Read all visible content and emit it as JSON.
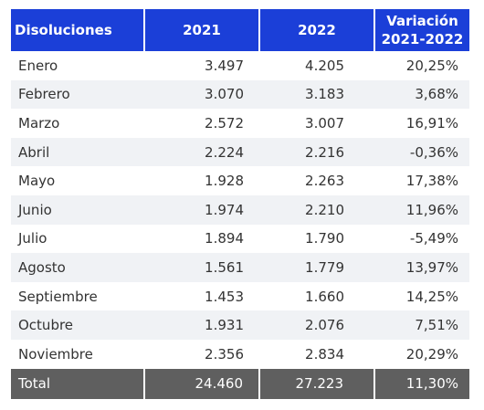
{
  "header": {
    "col_label": "Disoluciones",
    "col_2021": "2021",
    "col_2022": "2022",
    "col_var_line1": "Variación",
    "col_var_line2": "2021-2022"
  },
  "rows": [
    {
      "label": "Enero",
      "v2021": "3.497",
      "v2022": "4.205",
      "var": "20,25%"
    },
    {
      "label": "Febrero",
      "v2021": "3.070",
      "v2022": "3.183",
      "var": "3,68%"
    },
    {
      "label": "Marzo",
      "v2021": "2.572",
      "v2022": "3.007",
      "var": "16,91%"
    },
    {
      "label": "Abril",
      "v2021": "2.224",
      "v2022": "2.216",
      "var": "-0,36%"
    },
    {
      "label": "Mayo",
      "v2021": "1.928",
      "v2022": "2.263",
      "var": "17,38%"
    },
    {
      "label": "Junio",
      "v2021": "1.974",
      "v2022": "2.210",
      "var": "11,96%"
    },
    {
      "label": "Julio",
      "v2021": "1.894",
      "v2022": "1.790",
      "var": "-5,49%"
    },
    {
      "label": "Agosto",
      "v2021": "1.561",
      "v2022": "1.779",
      "var": "13,97%"
    },
    {
      "label": "Septiembre",
      "v2021": "1.453",
      "v2022": "1.660",
      "var": "14,25%"
    },
    {
      "label": "Octubre",
      "v2021": "1.931",
      "v2022": "2.076",
      "var": "7,51%"
    },
    {
      "label": "Noviembre",
      "v2021": "2.356",
      "v2022": "2.834",
      "var": "20,29%"
    }
  ],
  "total": {
    "label": "Total",
    "v2021": "24.460",
    "v2022": "27.223",
    "var": "11,30%"
  },
  "colors": {
    "header_bg": "#1b3fd8",
    "total_bg": "#5f5f5f",
    "stripe": "#f0f2f5"
  }
}
